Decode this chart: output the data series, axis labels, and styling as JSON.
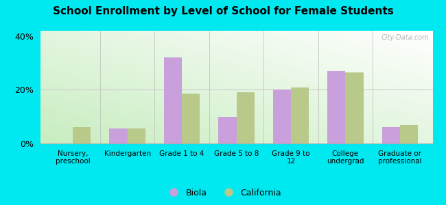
{
  "title": "School Enrollment by Level of School for Female Students",
  "categories": [
    "Nursery,\npreschool",
    "Kindergarten",
    "Grade 1 to 4",
    "Grade 5 to 8",
    "Grade 9 to\n12",
    "College\nundergrad",
    "Graduate or\nprofessional"
  ],
  "biola": [
    0.0,
    5.5,
    32.0,
    10.0,
    20.0,
    27.0,
    6.0
  ],
  "california": [
    6.0,
    5.5,
    18.5,
    19.0,
    21.0,
    26.5,
    7.0
  ],
  "biola_color": "#c9a0dc",
  "california_color": "#b8c98a",
  "outer_background": "#00e8f0",
  "ylim": [
    0,
    42
  ],
  "yticks": [
    0,
    20,
    40
  ],
  "ytick_labels": [
    "0%",
    "20%",
    "40%"
  ],
  "legend_labels": [
    "Biola",
    "California"
  ],
  "watermark": "City-Data.com",
  "grid_color": "#cccccc",
  "separator_color": "#bbbbbb"
}
